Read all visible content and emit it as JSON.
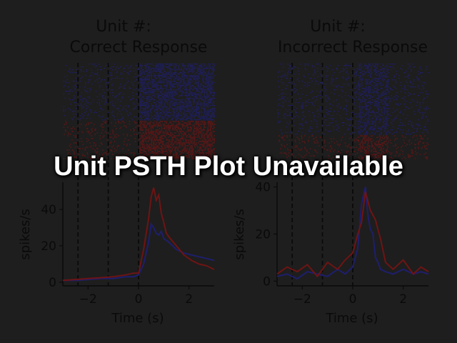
{
  "overlay_message": "Unit PSTH Plot Unavailable",
  "colors": {
    "correct": "#1e1e6e",
    "incorrect": "#6e1414",
    "axis": "#0a0a0a",
    "event_line": "#0a0a0a",
    "background": "#1e1e1e"
  },
  "chart_data": [
    {
      "type": "raster",
      "title_lines": [
        "Unit #:",
        "Correct Response"
      ],
      "event_times": [
        -2.4,
        -1.2,
        0
      ],
      "xlim": [
        -3,
        3
      ],
      "groups": [
        {
          "condition": "blue",
          "rows_fraction": 0.6
        },
        {
          "condition": "red",
          "rows_fraction": 0.4
        }
      ]
    },
    {
      "type": "raster",
      "title_lines": [
        "Unit #:",
        "Incorrect Response"
      ],
      "event_times": [
        -2.4,
        -1.2,
        0
      ],
      "xlim": [
        -3,
        3
      ],
      "groups": [
        {
          "condition": "blue",
          "rows_fraction": 0.75
        },
        {
          "condition": "red",
          "rows_fraction": 0.25
        }
      ]
    },
    {
      "type": "line",
      "xlabel": "Time (s)",
      "ylabel": "spikes/s",
      "xlim": [
        -3,
        3
      ],
      "ylim": [
        -2,
        55
      ],
      "xticks": [
        -2,
        0,
        2
      ],
      "xtick_labels": [
        "−2",
        "0",
        "2"
      ],
      "yticks": [
        0,
        20,
        40
      ],
      "ytick_labels": [
        "0",
        "20",
        "40"
      ],
      "event_times": [
        -2.4,
        -1.2,
        0
      ],
      "x": [
        -3,
        -2.5,
        -2,
        -1.5,
        -1,
        -0.5,
        -0.2,
        0,
        0.2,
        0.4,
        0.5,
        0.6,
        0.7,
        0.8,
        0.9,
        1.0,
        1.1,
        1.2,
        1.5,
        1.8,
        2.1,
        2.4,
        2.7,
        3
      ],
      "series": [
        {
          "color": "blue",
          "values": [
            1,
            1,
            1.5,
            2,
            2,
            3,
            3,
            4,
            10,
            22,
            32,
            30,
            27,
            26,
            28,
            24,
            23,
            22,
            18,
            16,
            15,
            14,
            13,
            12
          ]
        },
        {
          "color": "red",
          "values": [
            1,
            1.5,
            2,
            2.5,
            3,
            4,
            5,
            5,
            18,
            35,
            47,
            52,
            45,
            48,
            38,
            33,
            27,
            25,
            20,
            15,
            12,
            10,
            9,
            7
          ]
        }
      ]
    },
    {
      "type": "line",
      "xlabel": "Time (s)",
      "ylabel": "spikes/s",
      "xlim": [
        -3,
        3
      ],
      "ylim": [
        -2,
        42
      ],
      "xticks": [
        -2,
        0,
        2
      ],
      "xtick_labels": [
        "−2",
        "0",
        "2"
      ],
      "yticks": [
        0,
        20,
        40
      ],
      "ytick_labels": [
        "0",
        "20",
        "40"
      ],
      "event_times": [
        -2.4,
        -1.2,
        0
      ],
      "x": [
        -3,
        -2.6,
        -2.2,
        -1.8,
        -1.4,
        -1.0,
        -0.6,
        -0.3,
        0,
        0.2,
        0.35,
        0.5,
        0.6,
        0.7,
        0.8,
        0.9,
        1.0,
        1.1,
        1.3,
        1.6,
        2.0,
        2.4,
        2.7,
        3
      ],
      "series": [
        {
          "color": "blue",
          "values": [
            2,
            3,
            1,
            4,
            3,
            2,
            5,
            3,
            6,
            14,
            33,
            40,
            28,
            22,
            20,
            10,
            8,
            5,
            4,
            3,
            5,
            3,
            4,
            3
          ]
        },
        {
          "color": "red",
          "values": [
            3,
            6,
            4,
            7,
            2,
            8,
            5,
            9,
            12,
            20,
            25,
            38,
            34,
            30,
            28,
            26,
            22,
            18,
            8,
            5,
            9,
            3,
            6,
            4
          ]
        }
      ]
    }
  ]
}
